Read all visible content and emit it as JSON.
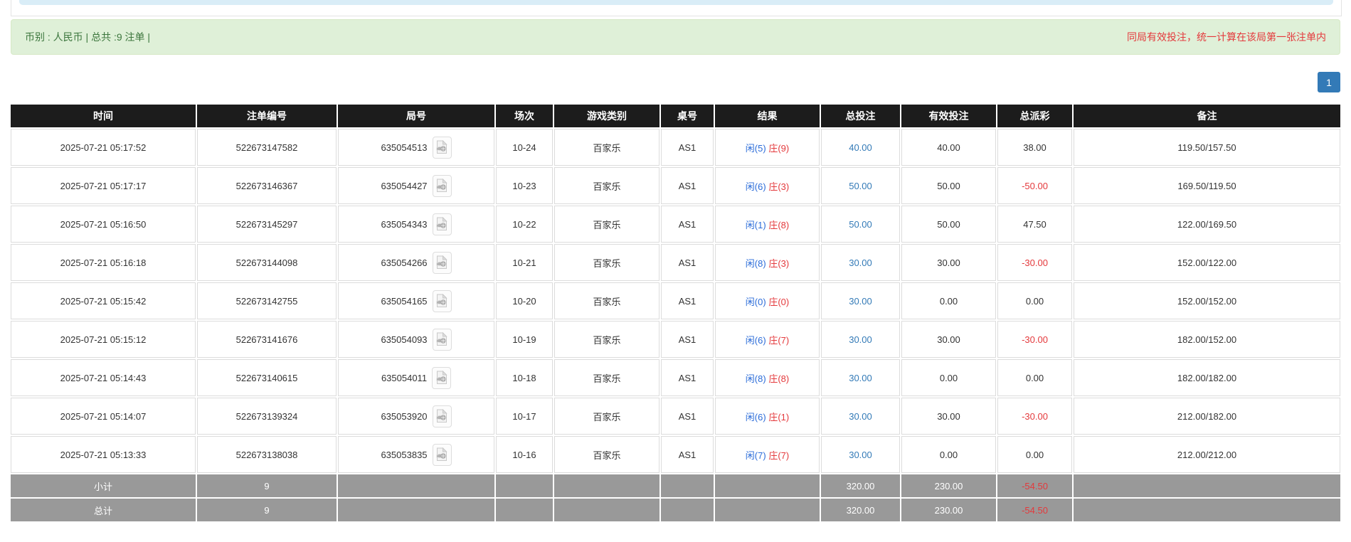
{
  "summary_bar": {
    "left": "币别 : 人民币 | 总共 :9 注单 |",
    "right": "同局有效投注，统一计算在该局第一张注单内"
  },
  "pagination": {
    "current_page": "1"
  },
  "icons": {
    "round_replay": "video-file-icon"
  },
  "colors": {
    "header_bg": "#1c1c1c",
    "alert_bg": "#dff0d8",
    "alert_text": "#3c763d",
    "warning_red": "#e4393c",
    "link_blue": "#337ab7",
    "result_player_blue": "#2b6cd9",
    "totals_bg": "#999999"
  },
  "table": {
    "columns": [
      {
        "key": "time",
        "label": "时间"
      },
      {
        "key": "bet_id",
        "label": "注单编号"
      },
      {
        "key": "round",
        "label": "局号"
      },
      {
        "key": "session",
        "label": "场次"
      },
      {
        "key": "game",
        "label": "游戏类别"
      },
      {
        "key": "table_no",
        "label": "桌号"
      },
      {
        "key": "result",
        "label": "结果"
      },
      {
        "key": "total_bet",
        "label": "总投注"
      },
      {
        "key": "valid_bet",
        "label": "有效投注"
      },
      {
        "key": "payout",
        "label": "总派彩"
      },
      {
        "key": "remark",
        "label": "备注"
      }
    ],
    "rows": [
      {
        "time": "2025-07-21 05:17:52",
        "bet_id": "522673147582",
        "round_no": "635054513",
        "session": "10-24",
        "game": "百家乐",
        "table_no": "AS1",
        "result_player": "闲(5)",
        "result_banker": "庄(9)",
        "total_bet": "40.00",
        "valid_bet": "40.00",
        "payout": "38.00",
        "remark": "119.50/157.50"
      },
      {
        "time": "2025-07-21 05:17:17",
        "bet_id": "522673146367",
        "round_no": "635054427",
        "session": "10-23",
        "game": "百家乐",
        "table_no": "AS1",
        "result_player": "闲(6)",
        "result_banker": "庄(3)",
        "total_bet": "50.00",
        "valid_bet": "50.00",
        "payout": "-50.00",
        "remark": "169.50/119.50"
      },
      {
        "time": "2025-07-21 05:16:50",
        "bet_id": "522673145297",
        "round_no": "635054343",
        "session": "10-22",
        "game": "百家乐",
        "table_no": "AS1",
        "result_player": "闲(1)",
        "result_banker": "庄(8)",
        "total_bet": "50.00",
        "valid_bet": "50.00",
        "payout": "47.50",
        "remark": "122.00/169.50"
      },
      {
        "time": "2025-07-21 05:16:18",
        "bet_id": "522673144098",
        "round_no": "635054266",
        "session": "10-21",
        "game": "百家乐",
        "table_no": "AS1",
        "result_player": "闲(8)",
        "result_banker": "庄(3)",
        "total_bet": "30.00",
        "valid_bet": "30.00",
        "payout": "-30.00",
        "remark": "152.00/122.00"
      },
      {
        "time": "2025-07-21 05:15:42",
        "bet_id": "522673142755",
        "round_no": "635054165",
        "session": "10-20",
        "game": "百家乐",
        "table_no": "AS1",
        "result_player": "闲(0)",
        "result_banker": "庄(0)",
        "total_bet": "30.00",
        "valid_bet": "0.00",
        "payout": "0.00",
        "remark": "152.00/152.00"
      },
      {
        "time": "2025-07-21 05:15:12",
        "bet_id": "522673141676",
        "round_no": "635054093",
        "session": "10-19",
        "game": "百家乐",
        "table_no": "AS1",
        "result_player": "闲(6)",
        "result_banker": "庄(7)",
        "total_bet": "30.00",
        "valid_bet": "30.00",
        "payout": "-30.00",
        "remark": "182.00/152.00"
      },
      {
        "time": "2025-07-21 05:14:43",
        "bet_id": "522673140615",
        "round_no": "635054011",
        "session": "10-18",
        "game": "百家乐",
        "table_no": "AS1",
        "result_player": "闲(8)",
        "result_banker": "庄(8)",
        "total_bet": "30.00",
        "valid_bet": "0.00",
        "payout": "0.00",
        "remark": "182.00/182.00"
      },
      {
        "time": "2025-07-21 05:14:07",
        "bet_id": "522673139324",
        "round_no": "635053920",
        "session": "10-17",
        "game": "百家乐",
        "table_no": "AS1",
        "result_player": "闲(6)",
        "result_banker": "庄(1)",
        "total_bet": "30.00",
        "valid_bet": "30.00",
        "payout": "-30.00",
        "remark": "212.00/182.00"
      },
      {
        "time": "2025-07-21 05:13:33",
        "bet_id": "522673138038",
        "round_no": "635053835",
        "session": "10-16",
        "game": "百家乐",
        "table_no": "AS1",
        "result_player": "闲(7)",
        "result_banker": "庄(7)",
        "total_bet": "30.00",
        "valid_bet": "0.00",
        "payout": "0.00",
        "remark": "212.00/212.00"
      }
    ],
    "totals": [
      {
        "label": "小计",
        "count": "9",
        "total_bet": "320.00",
        "valid_bet": "230.00",
        "payout": "-54.50",
        "remark": ""
      },
      {
        "label": "总计",
        "count": "9",
        "total_bet": "320.00",
        "valid_bet": "230.00",
        "payout": "-54.50",
        "remark": ""
      }
    ]
  }
}
